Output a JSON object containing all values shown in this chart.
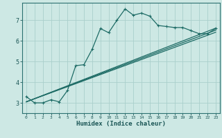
{
  "xlabel": "Humidex (Indice chaleur)",
  "background_color": "#cde8e4",
  "grid_color": "#aacfcc",
  "line_color": "#1d6b65",
  "xlim": [
    -0.5,
    23.5
  ],
  "ylim": [
    2.5,
    7.85
  ],
  "xticks": [
    0,
    1,
    2,
    3,
    4,
    5,
    6,
    7,
    8,
    9,
    10,
    11,
    12,
    13,
    14,
    15,
    16,
    17,
    18,
    19,
    20,
    21,
    22,
    23
  ],
  "yticks": [
    3,
    4,
    5,
    6,
    7
  ],
  "line1_x": [
    0,
    1,
    2,
    3,
    4,
    5,
    6,
    7,
    8,
    9,
    10,
    11,
    12,
    13,
    14,
    15,
    16,
    17,
    18,
    19,
    20,
    21,
    22,
    23
  ],
  "line1_y": [
    3.3,
    3.0,
    3.0,
    3.15,
    3.05,
    3.6,
    4.8,
    4.85,
    5.6,
    6.6,
    6.4,
    7.0,
    7.55,
    7.25,
    7.35,
    7.2,
    6.75,
    6.7,
    6.65,
    6.65,
    6.5,
    6.35,
    6.35,
    6.6
  ],
  "line2_x": [
    0,
    23
  ],
  "line2_y": [
    3.05,
    6.62
  ],
  "line3_x": [
    0,
    23
  ],
  "line3_y": [
    3.05,
    6.52
  ],
  "line4_x": [
    0,
    23
  ],
  "line4_y": [
    3.05,
    6.42
  ],
  "marker_x": [
    0,
    1,
    2,
    3,
    4,
    5,
    6,
    7,
    8,
    9,
    10,
    11,
    12,
    13,
    14,
    15,
    16,
    17,
    18,
    19,
    20,
    21,
    22,
    23
  ],
  "marker_y": [
    3.3,
    3.0,
    3.0,
    3.15,
    3.05,
    3.6,
    4.8,
    4.85,
    5.6,
    6.6,
    6.4,
    7.0,
    7.55,
    7.25,
    7.35,
    7.2,
    6.75,
    6.7,
    6.65,
    6.65,
    6.5,
    6.35,
    6.35,
    6.6
  ]
}
